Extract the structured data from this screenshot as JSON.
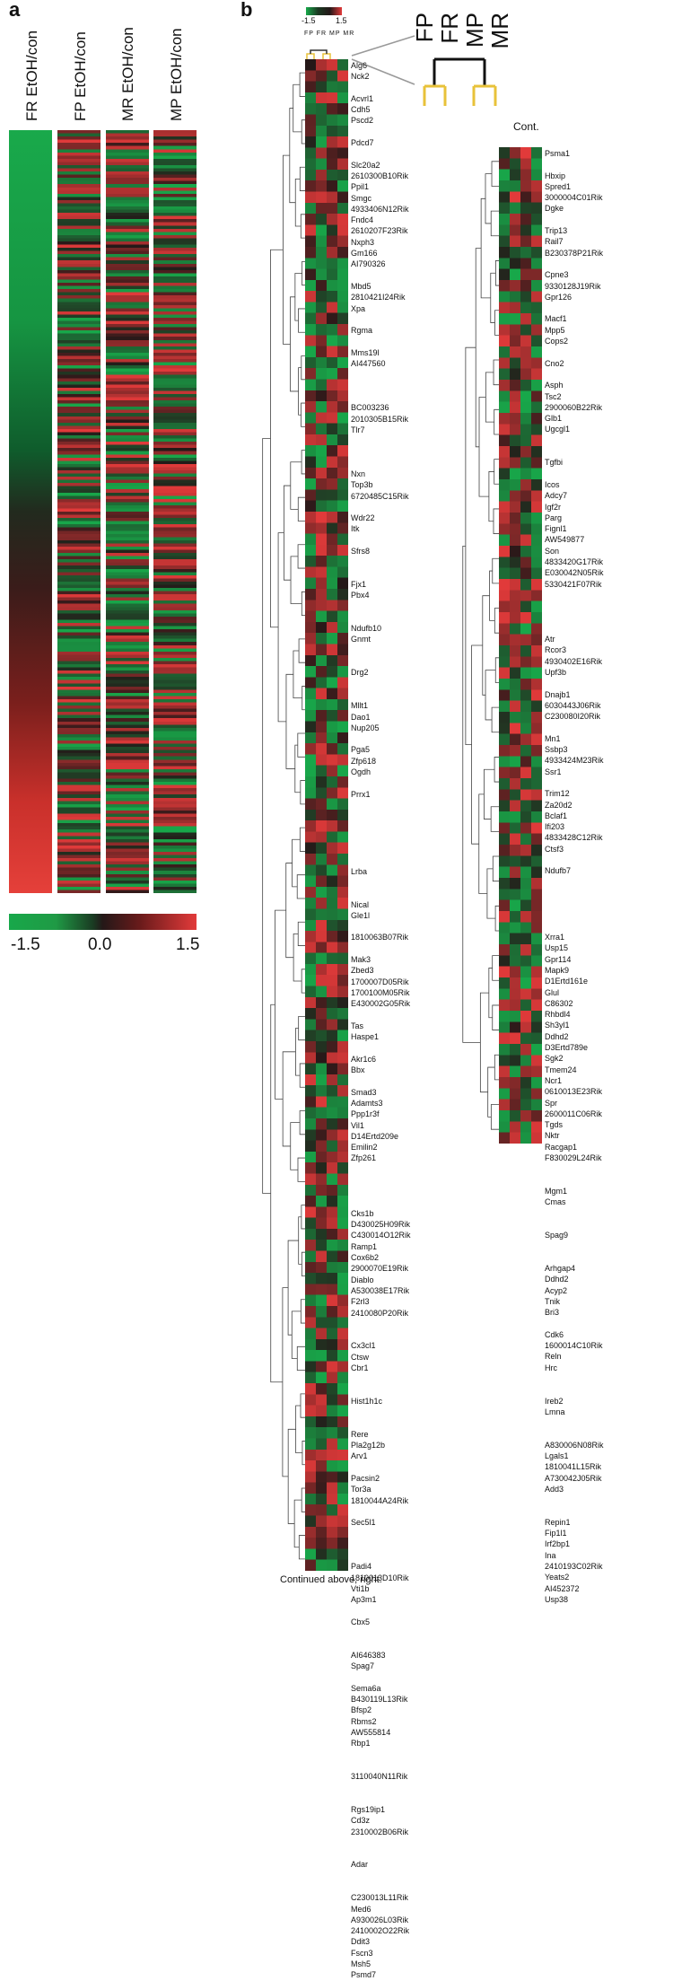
{
  "panel_a": {
    "letter": "a",
    "columns": [
      "FR EtOH/con",
      "FP EtOH/con",
      "MR EtOH/con",
      "MP EtOH/con"
    ],
    "scale": {
      "min": "-1.5",
      "mid": "0.0",
      "max": "1.5"
    },
    "colors": {
      "low": "#18a84a",
      "mid": "#241818",
      "high": "#e23a3a"
    }
  },
  "panel_b": {
    "letter": "b",
    "mini_scale": {
      "min": "-1.5",
      "max": "1.5"
    },
    "mini_headers": "FP FR MP MR",
    "tree_labels": [
      "FP",
      "FR",
      "MP",
      "MR"
    ],
    "cont_label": "Cont.",
    "caption": "Continued above, right.",
    "left_genes": [
      "Alg6",
      "Nck2",
      "",
      "Acvrl1",
      "Cdh5",
      "Pscd2",
      "",
      "Pdcd7",
      "",
      "Slc20a2",
      "2610300B10Rik",
      "Ppil1",
      "Smgc",
      "4933406N12Rik",
      "Fndc4",
      "2610207F23Rik",
      "Nxph3",
      "Gm166",
      "AI790326",
      "",
      "Mbd5",
      "2810421I24Rik",
      "Xpa",
      "",
      "Rgma",
      "",
      "Mms19l",
      "AI447560",
      "",
      "",
      "",
      "BC003236",
      "2010305B15Rik",
      "Tlr7",
      "",
      "",
      "",
      "Nxn",
      "Top3b",
      "6720485C15Rik",
      "",
      "Wdr22",
      "Itk",
      "",
      "Sfrs8",
      "",
      "",
      "Fjx1",
      "Pbx4",
      "",
      "",
      "Ndufb10",
      "Gnmt",
      "",
      "",
      "Drg2",
      "",
      "",
      "Mllt1",
      "Dao1",
      "Nup205",
      "",
      "Pga5",
      "Zfp618",
      "Ogdh",
      "",
      "Prrx1",
      "",
      "",
      "",
      "",
      "",
      "",
      "Lrba",
      "",
      "",
      "Nical",
      "Gle1l",
      "",
      "1810063B07Rik",
      "",
      "Mak3",
      "Zbed3",
      "1700007D05Rik",
      "1700100M05Rik",
      "E430002G05Rik",
      "",
      "Tas",
      "Haspe1",
      "",
      "Akr1c6",
      "Bbx",
      "",
      "Smad3",
      "Adamts3",
      "Ppp1r3f",
      "Vil1",
      "D14Ertd209e",
      "Emilin2",
      "Zfp261",
      "",
      "",
      "",
      "",
      "Cks1b",
      "D430025H09Rik",
      "C430014O12Rik",
      "Ramp1",
      "Cox6b2",
      "2900070E19Rik",
      "Diablo",
      "A530038E17Rik",
      "F2rl3",
      "2410080P20Rik",
      "",
      "",
      "Cx3cl1",
      "Ctsw",
      "Cbr1",
      "",
      "",
      "Hist1h1c",
      "",
      "",
      "Rere",
      "Pla2g12b",
      "Arv1",
      "",
      "Pacsin2",
      "Tor3a",
      "1810044A24Rik",
      "",
      "Sec5l1",
      "",
      "",
      "",
      "Padi4",
      "1810013D10Rik",
      "Vti1b",
      "Ap3m1",
      "",
      "Cbx5",
      "",
      "",
      "AI646383",
      "Spag7",
      "",
      "Sema6a",
      "B430119L13Rik",
      "Bfsp2",
      "Rbms2",
      "AW555814",
      "Rbp1",
      "",
      "",
      "3110040N11Rik",
      "",
      "",
      "Rgs19ip1",
      "Cd3z",
      "2310002B06Rik",
      "",
      "",
      "Adar",
      "",
      "",
      "C230013L11Rik",
      "Med6",
      "A930026L03Rik",
      "2410002O22Rik",
      "Ddit3",
      "Fscn3",
      "Msh5",
      "Psmd7"
    ],
    "right_genes": [
      "Psma1",
      "",
      "Hbxip",
      "Spred1",
      "3000004C01Rik",
      "Dgke",
      "",
      "Trip13",
      "Rail7",
      "B230378P21Rik",
      "",
      "Cpne3",
      "9330128J19Rik",
      "Gpr126",
      "",
      "Macf1",
      "Mpp5",
      "Cops2",
      "",
      "Cno2",
      "",
      "Asph",
      "Tsc2",
      "2900060B22Rik",
      "Glb1",
      "Ugcgl1",
      "",
      "",
      "Tgfbi",
      "",
      "Icos",
      "Adcy7",
      "Igf2r",
      "Parg",
      "Fignl1",
      "AW549877",
      "Son",
      "4833420G17Rik",
      "E030042N05Rik",
      "5330421F07Rik",
      "",
      "",
      "",
      "",
      "Atr",
      "Rcor3",
      "4930402E16Rik",
      "Upf3b",
      "",
      "Dnajb1",
      "6030443J06Rik",
      "C230080I20Rik",
      "",
      "Mn1",
      "Ssbp3",
      "4933424M23Rik",
      "Ssr1",
      "",
      "Trim12",
      "Za20d2",
      "Bclaf1",
      "Ifi203",
      "4833428C12Rik",
      "Ctsf3",
      "",
      "Ndufb7",
      "",
      "",
      "",
      "",
      "",
      "Xrra1",
      "Usp15",
      "Gpr114",
      "Mapk9",
      "D1Ertd161e",
      "Glul",
      "C86302",
      "Rhbdl4",
      "Sh3yl1",
      "Ddhd2",
      "D3Ertd789e",
      "Sgk2",
      "Tmem24",
      "Ncr1",
      "0610013E23Rik",
      "Spr",
      "2600011C06Rik",
      "Tgds",
      "Nktr",
      "Racgap1",
      "F830029L24Rik",
      "",
      "",
      "Mgm1",
      "Cmas",
      "",
      "",
      "Spag9",
      "",
      "",
      "Arhgap4",
      "Ddhd2",
      "Acyp2",
      "Tnik",
      "Bri3",
      "",
      "Cdk6",
      "1600014C10Rik",
      "Reln",
      "Hrc",
      "",
      "",
      "Ireb2",
      "Lmna",
      "",
      "",
      "A830006N08Rik",
      "Lgals1",
      "1810041L15Rik",
      "A730042J05Rik",
      "Add3",
      "",
      "",
      "Repin1",
      "Fip1l1",
      "Irf2bp1",
      "Ina",
      "2410193C02Rik",
      "Yeats2",
      "AI452372",
      "Usp38"
    ]
  }
}
